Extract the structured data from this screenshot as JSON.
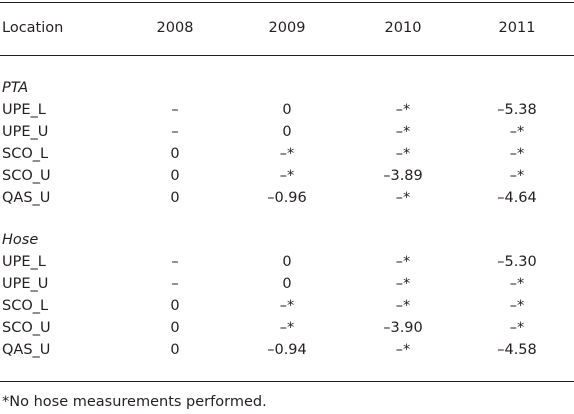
{
  "table": {
    "header": [
      "Location",
      "2008",
      "2009",
      "2010",
      "2011"
    ],
    "groups": [
      {
        "label": "PTA",
        "rows": [
          [
            "UPE_L",
            "–",
            "0",
            "–*",
            "–5.38"
          ],
          [
            "UPE_U",
            "–",
            "0",
            "–*",
            "–*"
          ],
          [
            "SCO_L",
            "0",
            "–*",
            "–*",
            "–*"
          ],
          [
            "SCO_U",
            "0",
            "–*",
            "–3.89",
            "–*"
          ],
          [
            "QAS_U",
            "0",
            "–0.96",
            "–*",
            "–4.64"
          ]
        ]
      },
      {
        "label": "Hose",
        "rows": [
          [
            "UPE_L",
            "–",
            "0",
            "–*",
            "–5.30"
          ],
          [
            "UPE_U",
            "–",
            "0",
            "–*",
            "–*"
          ],
          [
            "SCO_L",
            "0",
            "–*",
            "–*",
            "–*"
          ],
          [
            "SCO_U",
            "0",
            "–*",
            "–3.90",
            "–*"
          ],
          [
            "QAS_U",
            "0",
            "–0.94",
            "–*",
            "–4.58"
          ]
        ]
      }
    ]
  },
  "footnote": "*No hose measurements performed."
}
